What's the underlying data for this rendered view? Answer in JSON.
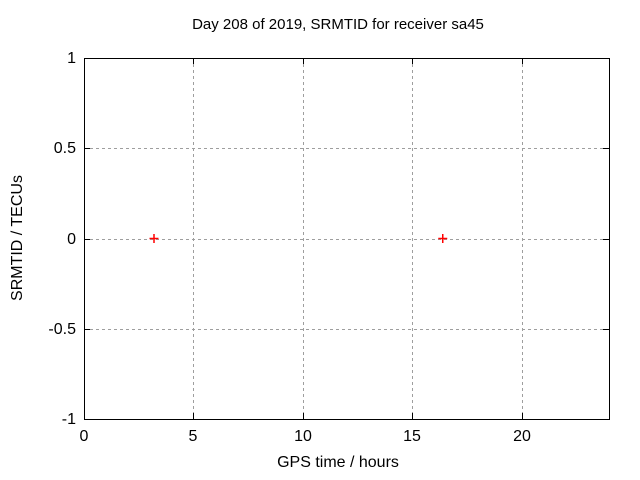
{
  "window": {
    "background": "#ffffff"
  },
  "chart_data": {
    "type": "scatter",
    "title": "Day 208 of 2019, SRMTID for receiver sa45",
    "xlabel": "GPS time / hours",
    "ylabel": "SRMTID / TECUs",
    "xlim": [
      0,
      24
    ],
    "ylim": [
      -1,
      1
    ],
    "xticks": [
      0,
      5,
      10,
      15,
      20
    ],
    "yticks": [
      -1,
      -0.5,
      0,
      0.5,
      1
    ],
    "grid": true,
    "grid_style": "dashed",
    "legend": "none",
    "marker": "plus",
    "colors": {
      "marker": "#ff0000",
      "grid": "#9e9e9e",
      "axis": "#000000",
      "text": "#000000",
      "background": "#ffffff"
    },
    "points": [
      {
        "x": 3.2,
        "y": 0
      },
      {
        "x": 16.4,
        "y": 0
      }
    ]
  }
}
